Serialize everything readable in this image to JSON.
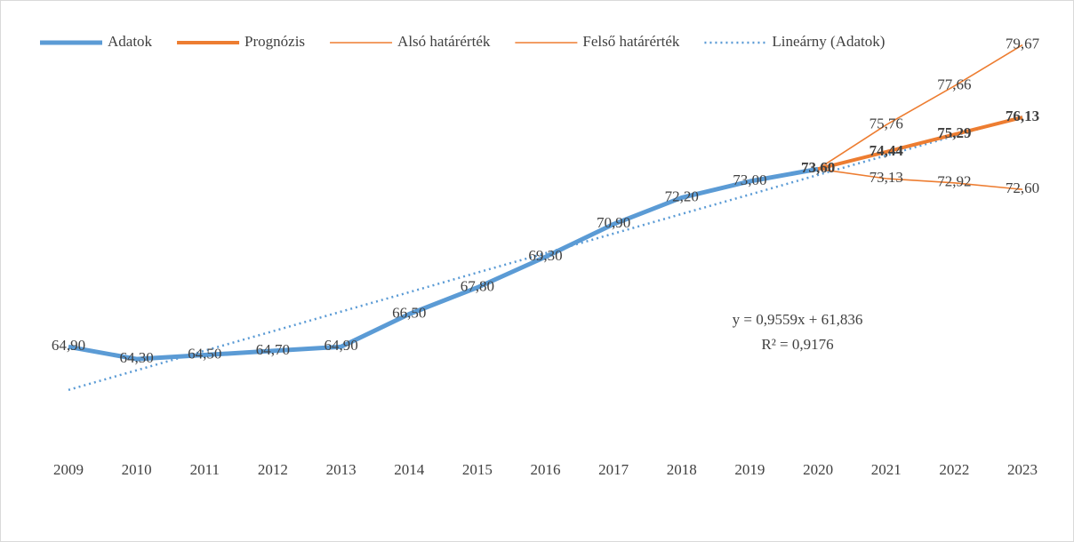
{
  "chart_data": {
    "type": "line",
    "categories": [
      "2009",
      "2010",
      "2011",
      "2012",
      "2013",
      "2014",
      "2015",
      "2016",
      "2017",
      "2018",
      "2019",
      "2020",
      "2021",
      "2022",
      "2023"
    ],
    "series": [
      {
        "name": "Adatok",
        "color": "#5b9bd5",
        "values": [
          64.9,
          64.3,
          64.5,
          64.7,
          64.9,
          66.5,
          67.8,
          69.3,
          70.9,
          72.2,
          73.0,
          73.6,
          null,
          null,
          null
        ],
        "value_labels": [
          "64,90",
          "64,30",
          "64,50",
          "64,70",
          "64,90",
          "66,50",
          "67,80",
          "69,30",
          "70,90",
          "72,20",
          "73,00",
          "73,60",
          null,
          null,
          null
        ]
      },
      {
        "name": "Prognózis",
        "color": "#ed7d31",
        "values": [
          null,
          null,
          null,
          null,
          null,
          null,
          null,
          null,
          null,
          null,
          null,
          73.6,
          74.44,
          75.29,
          76.13
        ],
        "value_labels": [
          null,
          null,
          null,
          null,
          null,
          null,
          null,
          null,
          null,
          null,
          null,
          "73,60",
          "74,44",
          "75,29",
          "76,13"
        ]
      },
      {
        "name": "Alsó határérték",
        "color": "#ed7d31",
        "values": [
          null,
          null,
          null,
          null,
          null,
          null,
          null,
          null,
          null,
          null,
          null,
          73.6,
          73.13,
          72.92,
          72.6
        ],
        "value_labels": [
          null,
          null,
          null,
          null,
          null,
          null,
          null,
          null,
          null,
          null,
          null,
          null,
          "73,13",
          "72,92",
          "72,60"
        ]
      },
      {
        "name": "Felső határérték",
        "color": "#ed7d31",
        "values": [
          null,
          null,
          null,
          null,
          null,
          null,
          null,
          null,
          null,
          null,
          null,
          73.6,
          75.76,
          77.66,
          79.67
        ],
        "value_labels": [
          null,
          null,
          null,
          null,
          null,
          null,
          null,
          null,
          null,
          null,
          null,
          null,
          "75,76",
          "77,66",
          "79,67"
        ]
      },
      {
        "name": "Lineárny (Adatok)",
        "color": "#5b9bd5",
        "trendline": true,
        "values": [
          62.79,
          63.75,
          64.71,
          65.66,
          66.62,
          67.57,
          68.53,
          69.48,
          70.44,
          71.4,
          72.35,
          73.31,
          74.26,
          75.22,
          76.17
        ]
      }
    ],
    "annotations": [
      "y = 0,9559x + 61,836",
      "R² = 0,9176"
    ],
    "ylim": [
      60,
      80
    ],
    "legend": "top"
  }
}
